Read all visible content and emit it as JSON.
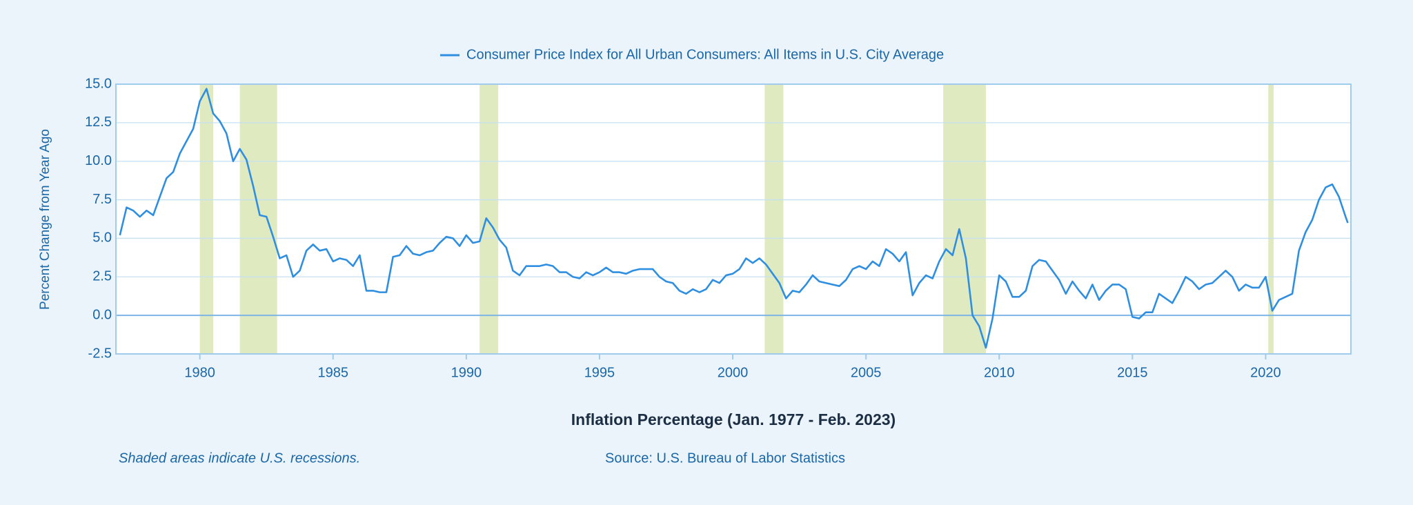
{
  "chart_data": {
    "type": "line",
    "title": "Inflation Percentage (Jan. 1977 - Feb. 2023)",
    "ylabel": "Percent Change from Year Ago",
    "note": "Shaded areas indicate U.S. recessions.",
    "source": "Source: U.S. Bureau of Labor Statistics",
    "recession_color": "#dfeac0",
    "recessions": [
      [
        1980.0,
        1980.5
      ],
      [
        1981.5,
        1982.9
      ],
      [
        1990.5,
        1991.2
      ],
      [
        2001.2,
        2001.9
      ],
      [
        2007.9,
        2009.5
      ],
      [
        2020.1,
        2020.3
      ]
    ],
    "x": [
      1977,
      1977.25,
      1977.5,
      1977.75,
      1978,
      1978.25,
      1978.5,
      1978.75,
      1979,
      1979.25,
      1979.5,
      1979.75,
      1980,
      1980.25,
      1980.5,
      1980.75,
      1981,
      1981.25,
      1981.5,
      1981.75,
      1982,
      1982.25,
      1982.5,
      1982.75,
      1983,
      1983.25,
      1983.5,
      1983.75,
      1984,
      1984.25,
      1984.5,
      1984.75,
      1985,
      1985.25,
      1985.5,
      1985.75,
      1986,
      1986.25,
      1986.5,
      1986.75,
      1987,
      1987.25,
      1987.5,
      1987.75,
      1988,
      1988.25,
      1988.5,
      1988.75,
      1989,
      1989.25,
      1989.5,
      1989.75,
      1990,
      1990.25,
      1990.5,
      1990.75,
      1991,
      1991.25,
      1991.5,
      1991.75,
      1992,
      1992.25,
      1992.5,
      1992.75,
      1993,
      1993.25,
      1993.5,
      1993.75,
      1994,
      1994.25,
      1994.5,
      1994.75,
      1995,
      1995.25,
      1995.5,
      1995.75,
      1996,
      1996.25,
      1996.5,
      1996.75,
      1997,
      1997.25,
      1997.5,
      1997.75,
      1998,
      1998.25,
      1998.5,
      1998.75,
      1999,
      1999.25,
      1999.5,
      1999.75,
      2000,
      2000.25,
      2000.5,
      2000.75,
      2001,
      2001.25,
      2001.5,
      2001.75,
      2002,
      2002.25,
      2002.5,
      2002.75,
      2003,
      2003.25,
      2003.5,
      2003.75,
      2004,
      2004.25,
      2004.5,
      2004.75,
      2005,
      2005.25,
      2005.5,
      2005.75,
      2006,
      2006.25,
      2006.5,
      2006.75,
      2007,
      2007.25,
      2007.5,
      2007.75,
      2008,
      2008.25,
      2008.5,
      2008.75,
      2009,
      2009.25,
      2009.5,
      2009.75,
      2010,
      2010.25,
      2010.5,
      2010.75,
      2011,
      2011.25,
      2011.5,
      2011.75,
      2012,
      2012.25,
      2012.5,
      2012.75,
      2013,
      2013.25,
      2013.5,
      2013.75,
      2014,
      2014.25,
      2014.5,
      2014.75,
      2015,
      2015.25,
      2015.5,
      2015.75,
      2016,
      2016.25,
      2016.5,
      2016.75,
      2017,
      2017.25,
      2017.5,
      2017.75,
      2018,
      2018.25,
      2018.5,
      2018.75,
      2019,
      2019.25,
      2019.5,
      2019.75,
      2020,
      2020.25,
      2020.5,
      2020.75,
      2021,
      2021.25,
      2021.5,
      2021.75,
      2022,
      2022.25,
      2022.5,
      2022.75,
      2023,
      2023.083
    ],
    "series": [
      {
        "name": "Consumer Price Index for All Urban Consumers: All Items in U.S. City Average",
        "color": "#2e8ee0",
        "values": [
          5.2,
          7.0,
          6.8,
          6.4,
          6.8,
          6.5,
          7.7,
          8.9,
          9.3,
          10.5,
          11.3,
          12.1,
          13.9,
          14.7,
          13.1,
          12.6,
          11.8,
          10.0,
          10.8,
          10.1,
          8.4,
          6.5,
          6.4,
          5.1,
          3.7,
          3.9,
          2.5,
          2.9,
          4.2,
          4.6,
          4.2,
          4.3,
          3.5,
          3.7,
          3.6,
          3.2,
          3.9,
          1.6,
          1.6,
          1.5,
          1.5,
          3.8,
          3.9,
          4.5,
          4.0,
          3.9,
          4.1,
          4.2,
          4.7,
          5.1,
          5.0,
          4.5,
          5.2,
          4.7,
          4.8,
          6.3,
          5.7,
          4.9,
          4.4,
          2.9,
          2.6,
          3.2,
          3.2,
          3.2,
          3.3,
          3.2,
          2.8,
          2.8,
          2.5,
          2.4,
          2.8,
          2.6,
          2.8,
          3.1,
          2.8,
          2.8,
          2.7,
          2.9,
          3.0,
          3.0,
          3.0,
          2.5,
          2.2,
          2.1,
          1.6,
          1.4,
          1.7,
          1.5,
          1.7,
          2.3,
          2.1,
          2.6,
          2.7,
          3.0,
          3.7,
          3.4,
          3.7,
          3.3,
          2.7,
          2.1,
          1.1,
          1.6,
          1.5,
          2.0,
          2.6,
          2.2,
          2.1,
          2.0,
          1.9,
          2.3,
          3.0,
          3.2,
          3.0,
          3.5,
          3.2,
          4.3,
          4.0,
          3.5,
          4.1,
          1.3,
          2.1,
          2.6,
          2.4,
          3.5,
          4.3,
          3.9,
          5.6,
          3.7,
          0.0,
          -0.7,
          -2.1,
          -0.2,
          2.6,
          2.2,
          1.2,
          1.2,
          1.6,
          3.2,
          3.6,
          3.5,
          2.9,
          2.3,
          1.4,
          2.2,
          1.6,
          1.1,
          2.0,
          1.0,
          1.6,
          2.0,
          2.0,
          1.7,
          -0.1,
          -0.2,
          0.2,
          0.2,
          1.4,
          1.1,
          0.8,
          1.6,
          2.5,
          2.2,
          1.7,
          2.0,
          2.1,
          2.5,
          2.9,
          2.5,
          1.6,
          2.0,
          1.8,
          1.8,
          2.5,
          0.3,
          1.0,
          1.2,
          1.4,
          4.2,
          5.4,
          6.2,
          7.5,
          8.3,
          8.5,
          7.7,
          6.4,
          6.0
        ]
      }
    ],
    "xlim": [
      1976.85,
      2023.2
    ],
    "xticks": [
      1980,
      1985,
      1990,
      1995,
      2000,
      2005,
      2010,
      2015,
      2020
    ],
    "ylim": [
      -2.5,
      15
    ],
    "yticks": [
      {
        "value": 15,
        "label": "15.0"
      },
      12.5,
      {
        "value": 10,
        "label": "10.0"
      },
      7.5,
      {
        "value": 5,
        "label": "5.0"
      },
      2.5,
      {
        "value": 0,
        "label": "0.0"
      },
      -2.5
    ],
    "grid": true
  }
}
